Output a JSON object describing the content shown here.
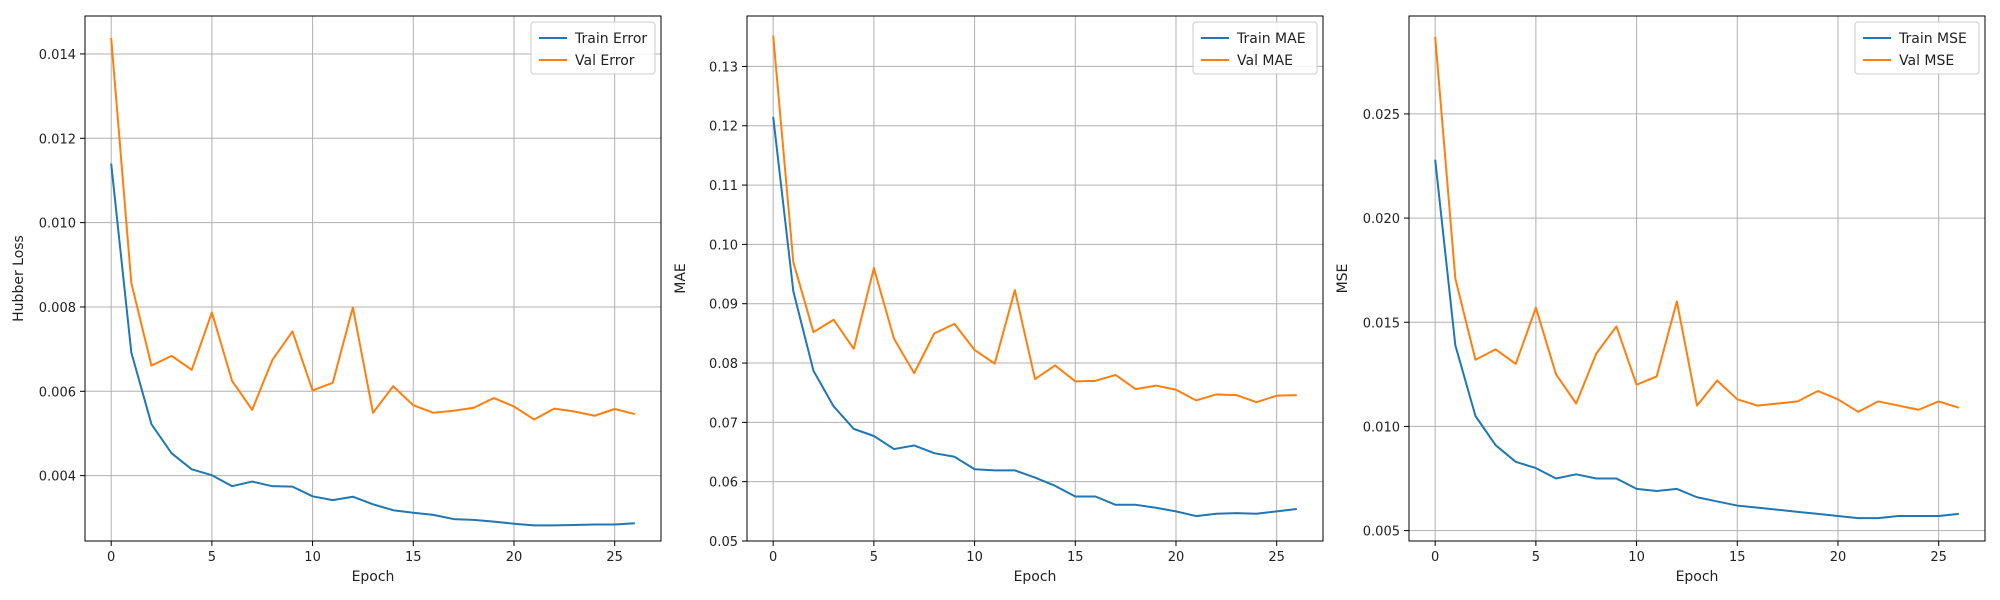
{
  "chart_data": [
    {
      "type": "line",
      "title": "",
      "xlabel": "Epoch",
      "ylabel": "Hubber Loss",
      "xlim": [
        -1.3,
        27.3
      ],
      "ylim": [
        0.00245,
        0.0149
      ],
      "xticks": [
        0,
        5,
        10,
        15,
        20,
        25
      ],
      "xtick_labels": [
        "0",
        "5",
        "10",
        "15",
        "20",
        "25"
      ],
      "yticks": [
        0.004,
        0.006,
        0.008,
        0.01,
        0.012,
        0.014
      ],
      "ytick_labels": [
        "0.004",
        "0.006",
        "0.008",
        "0.010",
        "0.012",
        "0.014"
      ],
      "grid": true,
      "legend_position": "top-right",
      "x": [
        0,
        1,
        2,
        3,
        4,
        5,
        6,
        7,
        8,
        9,
        10,
        11,
        12,
        13,
        14,
        15,
        16,
        17,
        18,
        19,
        20,
        21,
        22,
        23,
        24,
        25,
        26
      ],
      "series": [
        {
          "name": "Train Error",
          "color": "#1f77b4",
          "values": [
            0.0114,
            0.00692,
            0.00522,
            0.00453,
            0.00415,
            0.00401,
            0.00375,
            0.00386,
            0.00375,
            0.00374,
            0.00351,
            0.00342,
            0.0035,
            0.00332,
            0.00318,
            0.00312,
            0.00307,
            0.00297,
            0.00295,
            0.00291,
            0.00286,
            0.00282,
            0.00282,
            0.00283,
            0.00284,
            0.00284,
            0.00287
          ]
        },
        {
          "name": "Val Error",
          "color": "#ff7f0e",
          "values": [
            0.01438,
            0.00857,
            0.00661,
            0.00684,
            0.00651,
            0.00787,
            0.00625,
            0.00556,
            0.00674,
            0.00742,
            0.00602,
            0.0062,
            0.00799,
            0.00549,
            0.00612,
            0.00567,
            0.00549,
            0.00554,
            0.00561,
            0.00584,
            0.00564,
            0.00533,
            0.00559,
            0.00552,
            0.00542,
            0.00558,
            0.00546
          ]
        }
      ]
    },
    {
      "type": "line",
      "title": "",
      "xlabel": "Epoch",
      "ylabel": "MAE",
      "xlim": [
        -1.3,
        27.3
      ],
      "ylim": [
        0.05,
        0.1385
      ],
      "xticks": [
        0,
        5,
        10,
        15,
        20,
        25
      ],
      "xtick_labels": [
        "0",
        "5",
        "10",
        "15",
        "20",
        "25"
      ],
      "yticks": [
        0.05,
        0.06,
        0.07,
        0.08,
        0.09,
        0.1,
        0.11,
        0.12,
        0.13
      ],
      "ytick_labels": [
        "0.05",
        "0.06",
        "0.07",
        "0.08",
        "0.09",
        "0.10",
        "0.11",
        "0.12",
        "0.13"
      ],
      "grid": true,
      "legend_position": "top-right",
      "x": [
        0,
        1,
        2,
        3,
        4,
        5,
        6,
        7,
        8,
        9,
        10,
        11,
        12,
        13,
        14,
        15,
        16,
        17,
        18,
        19,
        20,
        21,
        22,
        23,
        24,
        25,
        26
      ],
      "series": [
        {
          "name": "Train MAE",
          "color": "#1f77b4",
          "values": [
            0.1215,
            0.0921,
            0.0787,
            0.0727,
            0.0689,
            0.0677,
            0.0655,
            0.0661,
            0.0648,
            0.0642,
            0.0621,
            0.0619,
            0.0619,
            0.0607,
            0.0593,
            0.0575,
            0.0575,
            0.0561,
            0.0561,
            0.0556,
            0.055,
            0.0542,
            0.0546,
            0.0547,
            0.0546,
            0.055,
            0.0554
          ]
        },
        {
          "name": "Val MAE",
          "color": "#ff7f0e",
          "values": [
            0.1352,
            0.097,
            0.0852,
            0.0873,
            0.0824,
            0.096,
            0.0841,
            0.0783,
            0.085,
            0.0866,
            0.0822,
            0.0799,
            0.0923,
            0.0773,
            0.0796,
            0.0769,
            0.077,
            0.078,
            0.0756,
            0.0762,
            0.0755,
            0.0737,
            0.0747,
            0.0746,
            0.0734,
            0.0745,
            0.0746
          ]
        }
      ]
    },
    {
      "type": "line",
      "title": "",
      "xlabel": "Epoch",
      "ylabel": "MSE",
      "xlim": [
        -1.3,
        27.3
      ],
      "ylim": [
        0.0045,
        0.0297
      ],
      "xticks": [
        0,
        5,
        10,
        15,
        20,
        25
      ],
      "xtick_labels": [
        "0",
        "5",
        "10",
        "15",
        "20",
        "25"
      ],
      "yticks": [
        0.005,
        0.01,
        0.015,
        0.02,
        0.025
      ],
      "ytick_labels": [
        "0.005",
        "0.010",
        "0.015",
        "0.020",
        "0.025"
      ],
      "grid": true,
      "legend_position": "top-right",
      "x": [
        0,
        1,
        2,
        3,
        4,
        5,
        6,
        7,
        8,
        9,
        10,
        11,
        12,
        13,
        14,
        15,
        16,
        17,
        18,
        19,
        20,
        21,
        22,
        23,
        24,
        25,
        26
      ],
      "series": [
        {
          "name": "Train MSE",
          "color": "#1f77b4",
          "values": [
            0.0228,
            0.0139,
            0.0105,
            0.0091,
            0.0083,
            0.008,
            0.0075,
            0.0077,
            0.0075,
            0.0075,
            0.007,
            0.0069,
            0.007,
            0.0066,
            0.0064,
            0.0062,
            0.0061,
            0.006,
            0.0059,
            0.0058,
            0.0057,
            0.0056,
            0.0056,
            0.0057,
            0.0057,
            0.0057,
            0.0058
          ]
        },
        {
          "name": "Val MSE",
          "color": "#ff7f0e",
          "values": [
            0.0287,
            0.0171,
            0.0132,
            0.0137,
            0.013,
            0.0157,
            0.0125,
            0.0111,
            0.0135,
            0.0148,
            0.012,
            0.0124,
            0.016,
            0.011,
            0.0122,
            0.0113,
            0.011,
            0.0111,
            0.0112,
            0.0117,
            0.0113,
            0.0107,
            0.0112,
            0.011,
            0.0108,
            0.0112,
            0.0109
          ]
        }
      ]
    }
  ]
}
